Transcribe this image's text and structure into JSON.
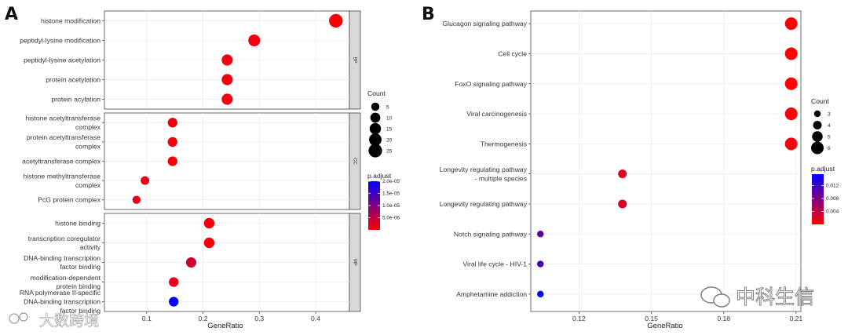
{
  "chart_data": [
    {
      "panel_label": "A",
      "type": "scatter",
      "subtype": "dot-plot",
      "xlabel": "GeneRatio",
      "xlim": [
        0.025,
        0.46
      ],
      "x_ticks": [
        0.1,
        0.2,
        0.3,
        0.4
      ],
      "x_tick_labels": [
        "0.1",
        "0.2",
        "0.3",
        "0.4"
      ],
      "facets": [
        {
          "name": "BP",
          "categories": [
            {
              "lines": [
                "histone modification"
              ],
              "x": 0.436,
              "count": 26,
              "p_adjust": 5e-07
            },
            {
              "lines": [
                "peptidyl-lysine modification"
              ],
              "x": 0.291,
              "count": 17,
              "p_adjust": 1e-06
            },
            {
              "lines": [
                "peptidyl-lysine acetylation"
              ],
              "x": 0.243,
              "count": 14,
              "p_adjust": 1e-06
            },
            {
              "lines": [
                "protein acetylation"
              ],
              "x": 0.243,
              "count": 14,
              "p_adjust": 1e-06
            },
            {
              "lines": [
                "protein acylation"
              ],
              "x": 0.243,
              "count": 14,
              "p_adjust": 1e-06
            }
          ]
        },
        {
          "name": "CC",
          "categories": [
            {
              "lines": [
                "histone acetyltransferase",
                "complex"
              ],
              "x": 0.146,
              "count": 9,
              "p_adjust": 1e-06
            },
            {
              "lines": [
                "protein acetyltransferase",
                "complex"
              ],
              "x": 0.146,
              "count": 9,
              "p_adjust": 1e-06
            },
            {
              "lines": [
                "acetyltransferase complex"
              ],
              "x": 0.146,
              "count": 9,
              "p_adjust": 1e-06
            },
            {
              "lines": [
                "histone methyltransferase",
                "complex"
              ],
              "x": 0.097,
              "count": 6,
              "p_adjust": 2e-06
            },
            {
              "lines": [
                "PcG protein complex"
              ],
              "x": 0.082,
              "count": 5,
              "p_adjust": 2e-06
            }
          ]
        },
        {
          "name": "MF",
          "categories": [
            {
              "lines": [
                "histone binding"
              ],
              "x": 0.211,
              "count": 12,
              "p_adjust": 1e-06
            },
            {
              "lines": [
                "transcription coregulator",
                "activity"
              ],
              "x": 0.211,
              "count": 12,
              "p_adjust": 1e-06
            },
            {
              "lines": [
                "DNA-binding transcription",
                "factor binding"
              ],
              "x": 0.179,
              "count": 11,
              "p_adjust": 4e-06
            },
            {
              "lines": [
                "modification-dependent",
                "protein binding"
              ],
              "x": 0.148,
              "count": 9,
              "p_adjust": 2e-06
            },
            {
              "lines": [
                "RNA polymerase II-specific",
                "DNA-binding transcription",
                "factor binding"
              ],
              "x": 0.148,
              "count": 9,
              "p_adjust": 2e-05
            }
          ]
        }
      ],
      "legend_count": {
        "title": "Count",
        "values": [
          5,
          10,
          15,
          20,
          25
        ]
      },
      "legend_padjust": {
        "title": "p.adjust",
        "min": 0,
        "max": 2e-05,
        "tick_values": [
          2e-05,
          1.5e-05,
          1e-05,
          5e-06
        ],
        "tick_labels": [
          "2.0e-05",
          "1.5e-05",
          "1.0e-05",
          "5.0e-06"
        ],
        "low_color": "#ff0000",
        "high_color": "#0000ff"
      }
    },
    {
      "panel_label": "B",
      "type": "scatter",
      "subtype": "dot-plot",
      "xlabel": "GeneRatio",
      "xlim": [
        0.1,
        0.212
      ],
      "x_ticks": [
        0.12,
        0.15,
        0.18,
        0.21
      ],
      "x_tick_labels": [
        "0.12",
        "0.15",
        "0.18",
        "0.21"
      ],
      "categories": [
        {
          "lines": [
            "Glucagon signaling pathway"
          ],
          "x": 0.208,
          "count": 6,
          "p_adjust": 0.0002
        },
        {
          "lines": [
            "Cell cycle"
          ],
          "x": 0.208,
          "count": 6,
          "p_adjust": 0.0002
        },
        {
          "lines": [
            "FoxO signaling pathway"
          ],
          "x": 0.208,
          "count": 6,
          "p_adjust": 0.0002
        },
        {
          "lines": [
            "Viral carcinogenesis"
          ],
          "x": 0.208,
          "count": 6,
          "p_adjust": 0.0003
        },
        {
          "lines": [
            "Thermogenesis"
          ],
          "x": 0.208,
          "count": 6,
          "p_adjust": 0.0008
        },
        {
          "lines": [
            "Longevity regulating pathway",
            "- multiple species"
          ],
          "x": 0.138,
          "count": 4,
          "p_adjust": 0.002
        },
        {
          "lines": [
            "Longevity regulating pathway"
          ],
          "x": 0.138,
          "count": 4,
          "p_adjust": 0.002
        },
        {
          "lines": [
            "Notch signaling pathway"
          ],
          "x": 0.104,
          "count": 3,
          "p_adjust": 0.01
        },
        {
          "lines": [
            "Viral life cycle - HIV-1"
          ],
          "x": 0.104,
          "count": 3,
          "p_adjust": 0.011
        },
        {
          "lines": [
            "Amphetamine addiction"
          ],
          "x": 0.104,
          "count": 3,
          "p_adjust": 0.015
        }
      ],
      "legend_count": {
        "title": "Count",
        "values": [
          3,
          4,
          5,
          6
        ]
      },
      "legend_padjust": {
        "title": "p.adjust",
        "min": 0,
        "max": 0.0155,
        "tick_values": [
          0.012,
          0.008,
          0.004
        ],
        "tick_labels": [
          "0.012",
          "0.008",
          "0.004"
        ],
        "low_color": "#ff0000",
        "high_color": "#0000ff"
      }
    }
  ],
  "watermarks": {
    "left": "大数跨境",
    "right": "中科生信"
  }
}
